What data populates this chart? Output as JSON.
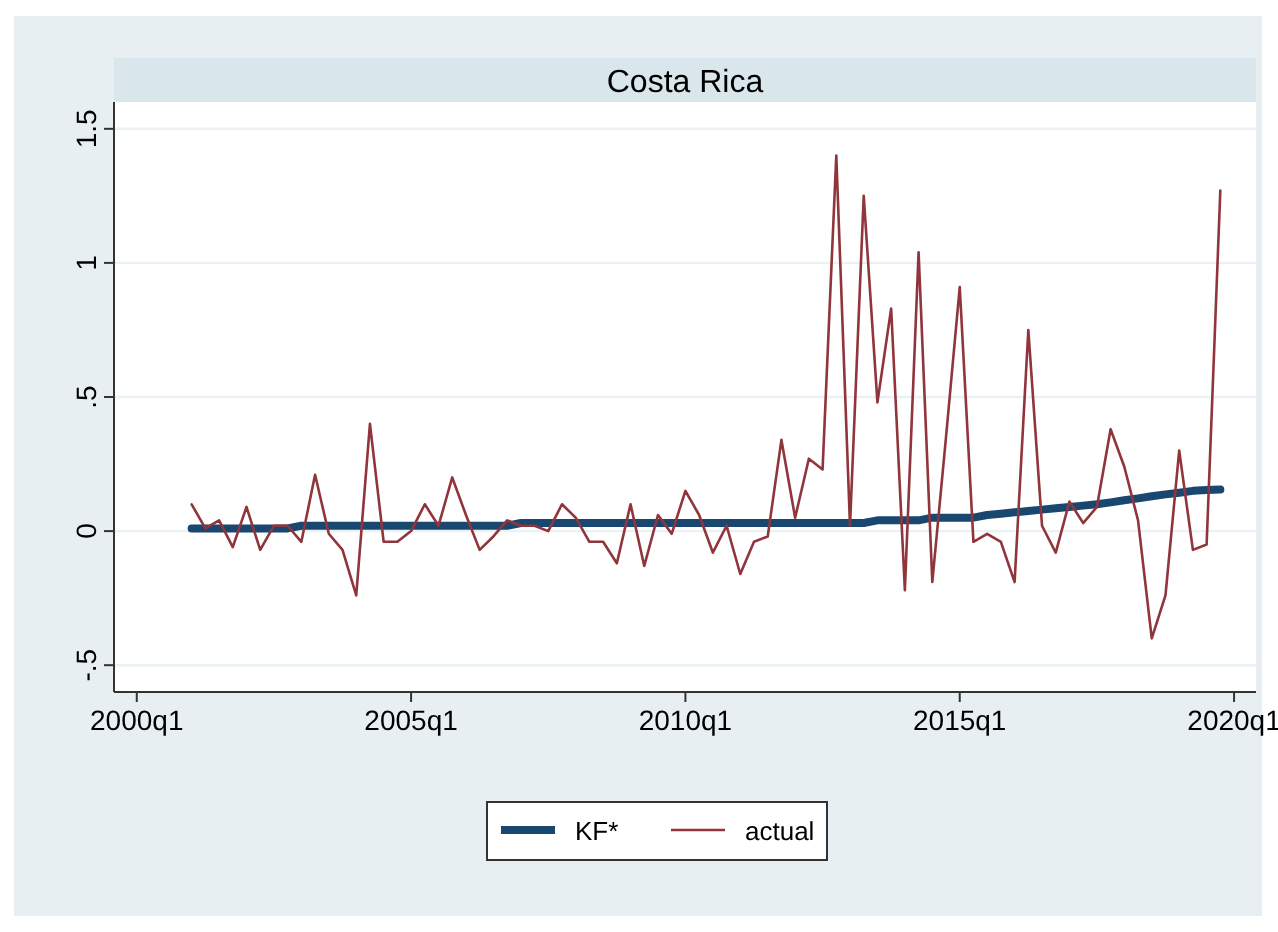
{
  "chart_data": {
    "type": "line",
    "title": "Costa Rica",
    "categories": [
      "2000q1",
      null,
      null,
      null,
      null,
      null,
      null,
      null,
      null,
      null,
      null,
      null,
      null,
      null,
      null,
      null,
      null,
      null,
      null,
      null,
      "2005q1",
      null,
      null,
      null,
      null,
      null,
      null,
      null,
      null,
      null,
      null,
      null,
      null,
      null,
      null,
      null,
      null,
      null,
      null,
      null,
      "2010q1",
      null,
      null,
      null,
      null,
      null,
      null,
      null,
      null,
      null,
      null,
      null,
      null,
      null,
      null,
      null,
      null,
      null,
      null,
      null,
      "2015q1",
      null,
      null,
      null,
      null,
      null,
      null,
      null,
      null,
      null,
      null,
      null,
      null,
      null,
      null,
      null,
      null,
      null,
      null,
      null,
      "2020q1"
    ],
    "series": [
      {
        "name": "KF*",
        "color": "#1a476f",
        "values": [
          null,
          null,
          null,
          null,
          0.01,
          0.01,
          0.01,
          0.01,
          0.01,
          0.01,
          0.01,
          0.01,
          0.02,
          0.02,
          0.02,
          0.02,
          0.02,
          0.02,
          0.02,
          0.02,
          0.02,
          0.02,
          0.02,
          0.02,
          0.02,
          0.02,
          0.02,
          0.02,
          0.03,
          0.03,
          0.03,
          0.03,
          0.03,
          0.03,
          0.03,
          0.03,
          0.03,
          0.03,
          0.03,
          0.03,
          0.03,
          0.03,
          0.03,
          0.03,
          0.03,
          0.03,
          0.03,
          0.03,
          0.03,
          0.03,
          0.03,
          0.03,
          0.03,
          0.03,
          0.04,
          0.04,
          0.04,
          0.04,
          0.05,
          0.05,
          0.05,
          0.05,
          0.06,
          0.065,
          0.07,
          0.075,
          0.08,
          0.085,
          0.09,
          0.095,
          0.1,
          0.107,
          0.115,
          0.122,
          0.13,
          0.137,
          0.143,
          0.15,
          0.153,
          0.155,
          null
        ]
      },
      {
        "name": "actual",
        "color": "#90353b",
        "values": [
          null,
          null,
          null,
          null,
          0.1,
          0.01,
          0.04,
          -0.06,
          0.09,
          -0.07,
          0.02,
          0.02,
          -0.04,
          0.21,
          -0.01,
          -0.07,
          -0.24,
          0.4,
          -0.04,
          -0.04,
          0,
          0.1,
          0.02,
          0.2,
          0.06,
          -0.07,
          -0.02,
          0.04,
          0.02,
          0.02,
          0,
          0.1,
          0.05,
          -0.04,
          -0.04,
          -0.12,
          0.1,
          -0.13,
          0.06,
          -0.01,
          0.15,
          0.06,
          -0.08,
          0.02,
          -0.16,
          -0.04,
          -0.02,
          0.34,
          0.05,
          0.27,
          0.23,
          1.4,
          0.02,
          1.25,
          0.48,
          0.83,
          -0.22,
          1.04,
          -0.19,
          0.35,
          0.91,
          -0.04,
          -0.01,
          -0.04,
          -0.19,
          0.75,
          0.02,
          -0.08,
          0.11,
          0.03,
          0.09,
          0.38,
          0.24,
          0.04,
          -0.4,
          -0.24,
          0.3,
          -0.07,
          -0.05,
          1.27,
          null
        ]
      }
    ],
    "ylim": [
      -0.6,
      1.6
    ],
    "yticks": [
      {
        "value": -0.5,
        "label": "-.5"
      },
      0,
      {
        "value": 0.5,
        "label": ".5"
      },
      1,
      1.5
    ],
    "grid": "y",
    "legend": "bottom",
    "marker": "none",
    "line_style": "solid"
  }
}
